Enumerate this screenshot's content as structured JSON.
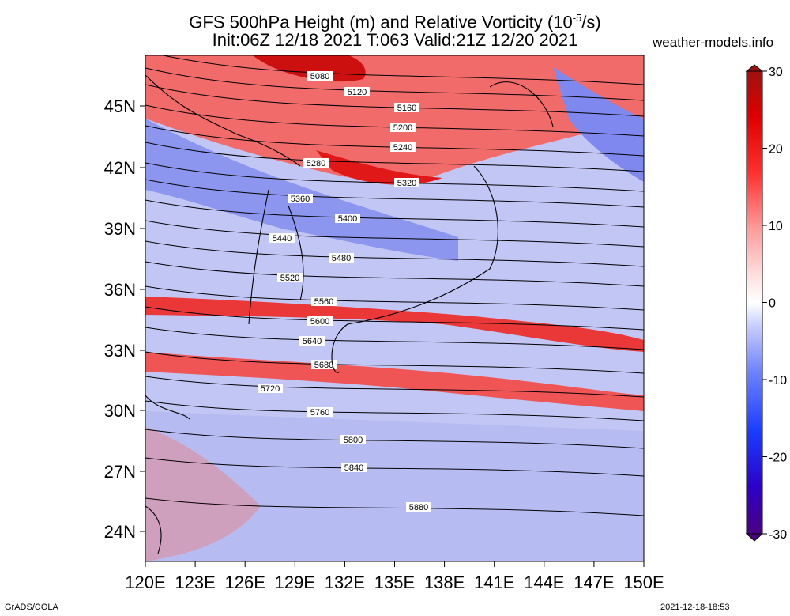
{
  "title_line1": "GFS 500hPa Height (m) and Relative Vorticity (10",
  "title_exp": "-5",
  "title_line1_end": "/s)",
  "title_line2": "Init:06Z 12/18 2021  T:063  Valid:21Z 12/20 2021",
  "site": "weather-models.info",
  "footer_left": "GrADS/COLA",
  "footer_right": "2021-12-18-18:53",
  "lat_labels": [
    "45N",
    "42N",
    "39N",
    "36N",
    "33N",
    "30N",
    "27N",
    "24N"
  ],
  "lon_labels": [
    "120E",
    "123E",
    "126E",
    "129E",
    "132E",
    "135E",
    "138E",
    "141E",
    "144E",
    "147E",
    "150E"
  ],
  "colorbar": {
    "labels": [
      "30",
      "20",
      "10",
      "0",
      "-10",
      "-20",
      "-30"
    ],
    "min": -30,
    "max": 30,
    "colors": [
      "#4b0082",
      "#2d00c8",
      "#1a3cff",
      "#6e82ff",
      "#b8c0ff",
      "#f2f2ff",
      "#ffffff",
      "#ffe0e0",
      "#ffaaaa",
      "#ff6060",
      "#ff2020",
      "#e00000",
      "#a01010"
    ]
  },
  "contours": [
    {
      "label": "5080"
    },
    {
      "label": "5120"
    },
    {
      "label": "5160"
    },
    {
      "label": "5200"
    },
    {
      "label": "5240"
    },
    {
      "label": "5280"
    },
    {
      "label": "5320"
    },
    {
      "label": "5360"
    },
    {
      "label": "5400"
    },
    {
      "label": "5440"
    },
    {
      "label": "5480"
    },
    {
      "label": "5520"
    },
    {
      "label": "5560"
    },
    {
      "label": "5600"
    },
    {
      "label": "5640"
    },
    {
      "label": "5680"
    },
    {
      "label": "5720"
    },
    {
      "label": "5760"
    },
    {
      "label": "5800"
    },
    {
      "label": "5840"
    },
    {
      "label": "5880"
    }
  ]
}
